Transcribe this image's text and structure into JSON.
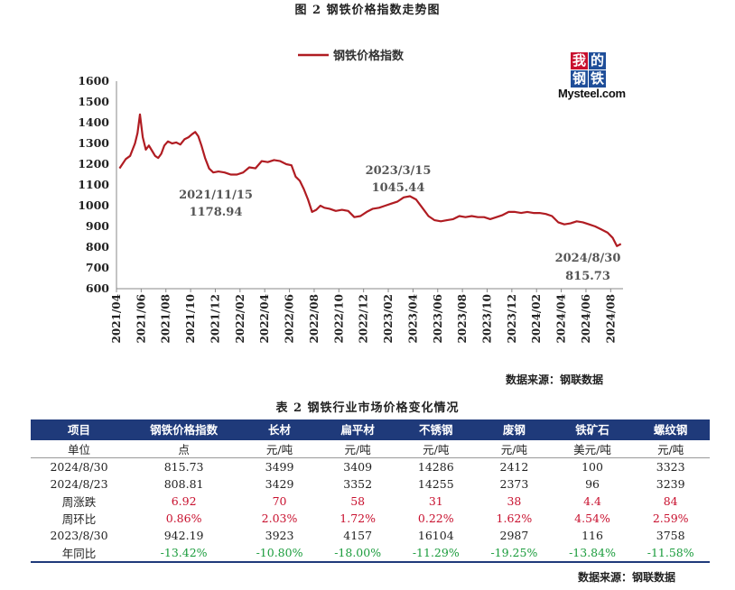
{
  "figure_title": "图 2 钢铁价格指数走势图",
  "source_label": "数据来源：钢联数据",
  "logo": {
    "chars": [
      "我",
      "的",
      "钢",
      "铁"
    ],
    "brand": "Mysteel.com"
  },
  "colors": {
    "line": "#b01c22",
    "header_bg": "#1f3a7a",
    "up": "#c8102e",
    "down": "#1a9c3c"
  },
  "chart_data": {
    "type": "line",
    "title": "",
    "xlabel": "",
    "ylabel": "",
    "ylim": [
      600,
      1600
    ],
    "yticks": [
      "1600",
      "1500",
      "1400",
      "1300",
      "1200",
      "1100",
      "1000",
      "900",
      "800",
      "700",
      "600"
    ],
    "xticks": [
      "2021/04",
      "2021/06",
      "2021/08",
      "2021/10",
      "2021/12",
      "2022/02",
      "2022/04",
      "2022/06",
      "2022/08",
      "2022/10",
      "2022/12",
      "2023/02",
      "2023/04",
      "2023/06",
      "2023/08",
      "2023/10",
      "2023/12",
      "2024/02",
      "2024/04",
      "2024/06",
      "2024/08"
    ],
    "x_start": "2021/04",
    "x_end": "2024/09",
    "legend_position": "top",
    "grid": false,
    "series": [
      {
        "name": "钢铁价格指数",
        "points": [
          [
            "2021/04",
            1180
          ],
          [
            "2021/04",
            1225
          ],
          [
            "2021/05",
            1240
          ],
          [
            "2021/05",
            1270
          ],
          [
            "2021/05",
            1300
          ],
          [
            "2021/05",
            1350
          ],
          [
            "2021/05",
            1440
          ],
          [
            "2021/06",
            1330
          ],
          [
            "2021/06",
            1270
          ],
          [
            "2021/06",
            1290
          ],
          [
            "2021/06",
            1265
          ],
          [
            "2021/07",
            1240
          ],
          [
            "2021/07",
            1230
          ],
          [
            "2021/07",
            1250
          ],
          [
            "2021/07",
            1290
          ],
          [
            "2021/08",
            1310
          ],
          [
            "2021/08",
            1300
          ],
          [
            "2021/08",
            1305
          ],
          [
            "2021/09",
            1295
          ],
          [
            "2021/09",
            1320
          ],
          [
            "2021/09",
            1330
          ],
          [
            "2021/10",
            1345
          ],
          [
            "2021/10",
            1355
          ],
          [
            "2021/10",
            1335
          ],
          [
            "2021/10",
            1290
          ],
          [
            "2021/11",
            1230
          ],
          [
            "2021/11",
            1178.94
          ],
          [
            "2021/11",
            1160
          ],
          [
            "2021/12",
            1165
          ],
          [
            "2021/12",
            1160
          ],
          [
            "2022/01",
            1150
          ],
          [
            "2022/01",
            1150
          ],
          [
            "2022/02",
            1160
          ],
          [
            "2022/02",
            1185
          ],
          [
            "2022/03",
            1180
          ],
          [
            "2022/03",
            1215
          ],
          [
            "2022/04",
            1210
          ],
          [
            "2022/04",
            1220
          ],
          [
            "2022/05",
            1215
          ],
          [
            "2022/05",
            1200
          ],
          [
            "2022/06",
            1195
          ],
          [
            "2022/06",
            1140
          ],
          [
            "2022/06",
            1120
          ],
          [
            "2022/07",
            1080
          ],
          [
            "2022/07",
            1030
          ],
          [
            "2022/07",
            970
          ],
          [
            "2022/08",
            980
          ],
          [
            "2022/08",
            1000
          ],
          [
            "2022/08",
            990
          ],
          [
            "2022/09",
            985
          ],
          [
            "2022/09",
            975
          ],
          [
            "2022/10",
            980
          ],
          [
            "2022/10",
            975
          ],
          [
            "2022/11",
            945
          ],
          [
            "2022/11",
            950
          ],
          [
            "2022/12",
            970
          ],
          [
            "2022/12",
            985
          ],
          [
            "2023/01",
            990
          ],
          [
            "2023/01",
            1000
          ],
          [
            "2023/02",
            1010
          ],
          [
            "2023/02",
            1020
          ],
          [
            "2023/03",
            1040
          ],
          [
            "2023/03",
            1045.44
          ],
          [
            "2023/04",
            1030
          ],
          [
            "2023/04",
            990
          ],
          [
            "2023/05",
            950
          ],
          [
            "2023/05",
            930
          ],
          [
            "2023/06",
            925
          ],
          [
            "2023/06",
            930
          ],
          [
            "2023/07",
            935
          ],
          [
            "2023/07",
            950
          ],
          [
            "2023/08",
            945
          ],
          [
            "2023/08",
            950
          ],
          [
            "2023/09",
            945
          ],
          [
            "2023/09",
            945
          ],
          [
            "2023/10",
            935
          ],
          [
            "2023/10",
            945
          ],
          [
            "2023/11",
            955
          ],
          [
            "2023/11",
            970
          ],
          [
            "2023/12",
            970
          ],
          [
            "2023/12",
            965
          ],
          [
            "2024/01",
            970
          ],
          [
            "2024/01",
            965
          ],
          [
            "2024/02",
            965
          ],
          [
            "2024/02",
            960
          ],
          [
            "2024/03",
            950
          ],
          [
            "2024/03",
            920
          ],
          [
            "2024/04",
            910
          ],
          [
            "2024/04",
            915
          ],
          [
            "2024/05",
            925
          ],
          [
            "2024/05",
            920
          ],
          [
            "2024/06",
            910
          ],
          [
            "2024/06",
            900
          ],
          [
            "2024/07",
            885
          ],
          [
            "2024/07",
            870
          ],
          [
            "2024/08",
            845
          ],
          [
            "2024/08",
            805
          ],
          [
            "2024/08",
            815.73
          ]
        ]
      }
    ],
    "annotations": [
      {
        "date": "2021/11/15",
        "value": "1178.94"
      },
      {
        "date": "2023/3/15",
        "value": "1045.44"
      },
      {
        "date": "2024/8/30",
        "value": "815.73"
      }
    ]
  },
  "table": {
    "title": "表 2 钢铁行业市场价格变化情况",
    "headers": [
      "项目",
      "钢铁价格指数",
      "长材",
      "扁平材",
      "不锈钢",
      "废钢",
      "铁矿石",
      "螺纹钢"
    ],
    "rows": [
      {
        "label": "单位",
        "cells": [
          "点",
          "元/吨",
          "元/吨",
          "元/吨",
          "元/吨",
          "美元/吨",
          "元/吨"
        ],
        "kind": "plain"
      },
      {
        "label": "2024/8/30",
        "cells": [
          "815.73",
          "3499",
          "3409",
          "14286",
          "2412",
          "100",
          "3323"
        ],
        "kind": "plain"
      },
      {
        "label": "2024/8/23",
        "cells": [
          "808.81",
          "3429",
          "3352",
          "14255",
          "2373",
          "96",
          "3239"
        ],
        "kind": "plain"
      },
      {
        "label": "周涨跌",
        "cells": [
          "6.92",
          "70",
          "58",
          "31",
          "38",
          "4.4",
          "84"
        ],
        "kind": "red"
      },
      {
        "label": "周环比",
        "cells": [
          "0.86%",
          "2.03%",
          "1.72%",
          "0.22%",
          "1.62%",
          "4.54%",
          "2.59%"
        ],
        "kind": "red"
      },
      {
        "label": "2023/8/30",
        "cells": [
          "942.19",
          "3923",
          "4157",
          "16104",
          "2987",
          "116",
          "3758"
        ],
        "kind": "plain"
      },
      {
        "label": "年同比",
        "cells": [
          "-13.42%",
          "-10.80%",
          "-18.00%",
          "-11.29%",
          "-19.25%",
          "-13.84%",
          "-11.58%"
        ],
        "kind": "green"
      }
    ]
  }
}
